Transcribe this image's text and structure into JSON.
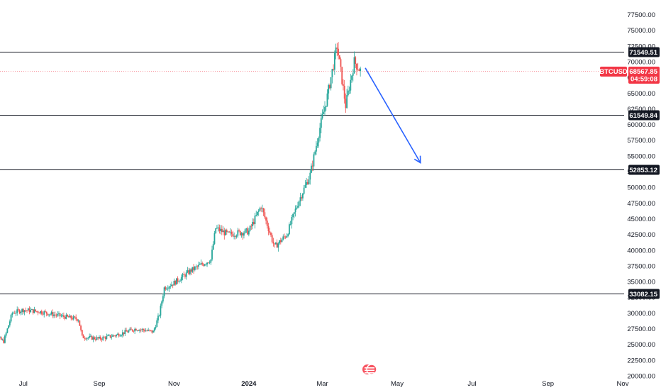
{
  "chart_data": {
    "type": "candlestick",
    "symbol": "BTCUSD",
    "y_axis": {
      "min": 20000,
      "max": 77500,
      "step": 2500,
      "labels": [
        "77500.00",
        "75000.00",
        "72500.00",
        "70000.00",
        "67500.00",
        "65000.00",
        "62500.00",
        "60000.00",
        "57500.00",
        "55000.00",
        "52500.00",
        "50000.00",
        "47500.00",
        "45000.00",
        "42500.00",
        "40000.00",
        "37500.00",
        "35000.00",
        "32500.00",
        "30000.00",
        "27500.00",
        "25000.00",
        "22500.00",
        "20000.00"
      ]
    },
    "x_axis": {
      "start": "2023-06-01",
      "end": "2024-11-01",
      "labels": [
        {
          "date": "2023-07-01",
          "text": "Jul",
          "bold": false
        },
        {
          "date": "2023-09-01",
          "text": "Sep",
          "bold": false
        },
        {
          "date": "2023-11-01",
          "text": "Nov",
          "bold": false
        },
        {
          "date": "2024-01-01",
          "text": "2024",
          "bold": true
        },
        {
          "date": "2024-03-01",
          "text": "Mar",
          "bold": false
        },
        {
          "date": "2024-05-01",
          "text": "May",
          "bold": false
        },
        {
          "date": "2024-07-01",
          "text": "Jul",
          "bold": false
        },
        {
          "date": "2024-09-01",
          "text": "Sep",
          "bold": false
        },
        {
          "date": "2024-11-01",
          "text": "Nov",
          "bold": false
        }
      ]
    },
    "price_trend": [
      [
        "2023-06-01",
        27000
      ],
      [
        "2023-06-15",
        25500
      ],
      [
        "2023-06-22",
        30000
      ],
      [
        "2023-07-01",
        30500
      ],
      [
        "2023-07-15",
        30200
      ],
      [
        "2023-08-01",
        29500
      ],
      [
        "2023-08-15",
        29000
      ],
      [
        "2023-08-18",
        26200
      ],
      [
        "2023-09-01",
        25900
      ],
      [
        "2023-09-15",
        26500
      ],
      [
        "2023-10-01",
        27500
      ],
      [
        "2023-10-15",
        27000
      ],
      [
        "2023-10-20",
        29800
      ],
      [
        "2023-10-24",
        34000
      ],
      [
        "2023-11-01",
        34800
      ],
      [
        "2023-11-15",
        36800
      ],
      [
        "2023-12-01",
        38500
      ],
      [
        "2023-12-05",
        43500
      ],
      [
        "2023-12-15",
        42500
      ],
      [
        "2024-01-01",
        43000
      ],
      [
        "2024-01-11",
        47000
      ],
      [
        "2024-01-22",
        40500
      ],
      [
        "2024-02-01",
        42500
      ],
      [
        "2024-02-10",
        47500
      ],
      [
        "2024-02-20",
        52000
      ],
      [
        "2024-02-28",
        59500
      ],
      [
        "2024-03-05",
        64500
      ],
      [
        "2024-03-13",
        72500
      ],
      [
        "2024-03-20",
        63000
      ],
      [
        "2024-03-27",
        70000
      ],
      [
        "2024-04-01",
        68600
      ]
    ],
    "horizontal_levels": [
      {
        "price": 71549.51,
        "label": "71549.51"
      },
      {
        "price": 61549.84,
        "label": "61549.84"
      },
      {
        "price": 52853.12,
        "label": "52853.12"
      },
      {
        "price": 33082.15,
        "label": "33082.15"
      }
    ],
    "current_price": {
      "symbol": "BTCUSD",
      "price": 68567.85,
      "label": "68567.85",
      "countdown": "04:59:08"
    },
    "projection_arrow": {
      "from": {
        "date": "2024-04-05",
        "price": 69000
      },
      "to": {
        "date": "2024-05-20",
        "price": 53900
      }
    },
    "colors": {
      "up": "#26a69a",
      "down": "#ef5350",
      "level_line": "#131722",
      "arrow": "#2962ff",
      "price_badge": "#f23645"
    }
  }
}
